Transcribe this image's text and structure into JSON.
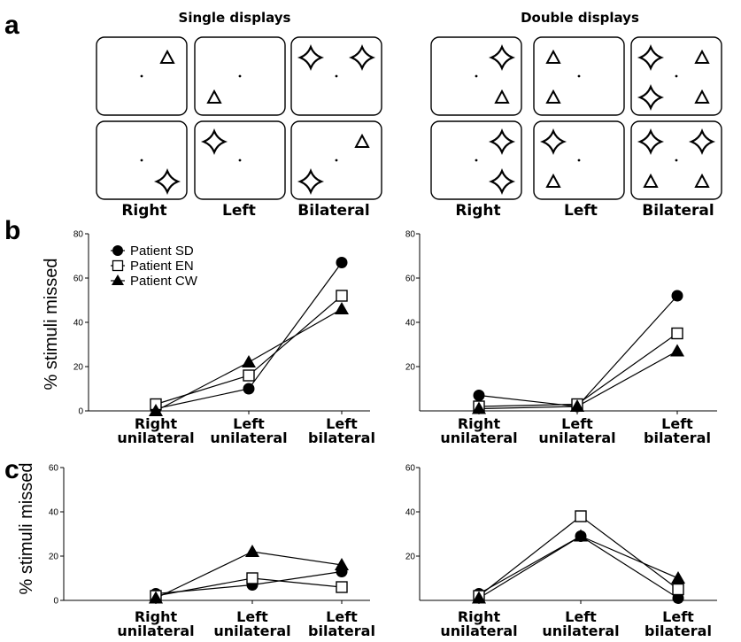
{
  "panel_labels": {
    "a": "a",
    "b": "b",
    "c": "c"
  },
  "displays": {
    "single_title": "Single displays",
    "double_title": "Double displays",
    "single_conditions": [
      "Right",
      "Left",
      "Bilateral"
    ],
    "double_conditions": [
      "Right",
      "Left",
      "Bilateral"
    ],
    "single_boxes": [
      [
        {
          "shape": "triangle",
          "pos": "upper-right"
        }
      ],
      [
        {
          "shape": "triangle",
          "pos": "lower-left"
        }
      ],
      [
        {
          "shape": "star",
          "pos": "upper-left"
        },
        {
          "shape": "star",
          "pos": "upper-right"
        }
      ],
      [
        {
          "shape": "star",
          "pos": "lower-right"
        }
      ],
      [
        {
          "shape": "star",
          "pos": "upper-left"
        }
      ],
      [
        {
          "shape": "star",
          "pos": "lower-left"
        },
        {
          "shape": "triangle",
          "pos": "upper-right"
        }
      ]
    ],
    "double_boxes": [
      [
        {
          "shape": "star",
          "pos": "upper-right"
        },
        {
          "shape": "triangle",
          "pos": "lower-right"
        }
      ],
      [
        {
          "shape": "triangle",
          "pos": "upper-left"
        },
        {
          "shape": "triangle",
          "pos": "lower-left"
        }
      ],
      [
        {
          "shape": "star",
          "pos": "upper-left"
        },
        {
          "shape": "star",
          "pos": "lower-left"
        },
        {
          "shape": "triangle",
          "pos": "upper-right"
        },
        {
          "shape": "triangle",
          "pos": "lower-right"
        }
      ],
      [
        {
          "shape": "star",
          "pos": "upper-right"
        },
        {
          "shape": "star",
          "pos": "lower-right"
        }
      ],
      [
        {
          "shape": "star",
          "pos": "upper-left"
        },
        {
          "shape": "triangle",
          "pos": "lower-left"
        }
      ],
      [
        {
          "shape": "star",
          "pos": "upper-left"
        },
        {
          "shape": "star",
          "pos": "upper-right"
        },
        {
          "shape": "triangle",
          "pos": "lower-left"
        },
        {
          "shape": "triangle",
          "pos": "lower-right"
        }
      ]
    ]
  },
  "legend": [
    {
      "name": "Patient SD",
      "marker": "filled-circle"
    },
    {
      "name": "Patient EN",
      "marker": "open-square"
    },
    {
      "name": "Patient CW",
      "marker": "filled-triangle"
    }
  ],
  "chart_data": [
    {
      "id": "b-left",
      "type": "line",
      "ylabel": "% stimuli missed",
      "ylim": [
        0,
        80
      ],
      "yticks": [
        0,
        20,
        40,
        60,
        80
      ],
      "categories": [
        [
          "Right",
          "unilateral"
        ],
        [
          "Left",
          "unilateral"
        ],
        [
          "Left",
          "bilateral"
        ]
      ],
      "series": [
        {
          "name": "Patient SD",
          "values": [
            1,
            10,
            67
          ]
        },
        {
          "name": "Patient EN",
          "values": [
            3,
            16,
            52
          ]
        },
        {
          "name": "Patient CW",
          "values": [
            0,
            22,
            46
          ]
        }
      ]
    },
    {
      "id": "b-right",
      "type": "line",
      "ylabel": "",
      "ylim": [
        0,
        80
      ],
      "yticks": [
        20,
        40,
        60,
        80
      ],
      "categories": [
        [
          "Right",
          "unilateral"
        ],
        [
          "Left",
          "unilateral"
        ],
        [
          "Left",
          "bilateral"
        ]
      ],
      "series": [
        {
          "name": "Patient SD",
          "values": [
            7,
            2,
            52
          ]
        },
        {
          "name": "Patient EN",
          "values": [
            2,
            3,
            35
          ]
        },
        {
          "name": "Patient CW",
          "values": [
            1,
            2,
            27
          ]
        }
      ]
    },
    {
      "id": "c-left",
      "type": "line",
      "ylabel": "% stimuli missed",
      "ylim": [
        0,
        60
      ],
      "yticks": [
        0,
        20,
        40,
        60
      ],
      "categories": [
        [
          "Right",
          "unilateral"
        ],
        [
          "Left",
          "unilateral"
        ],
        [
          "Left",
          "bilateral"
        ]
      ],
      "series": [
        {
          "name": "Patient SD",
          "values": [
            3,
            7,
            13
          ]
        },
        {
          "name": "Patient EN",
          "values": [
            2,
            10,
            6
          ]
        },
        {
          "name": "Patient CW",
          "values": [
            1,
            22,
            16
          ]
        }
      ]
    },
    {
      "id": "c-right",
      "type": "line",
      "ylabel": "",
      "ylim": [
        0,
        60
      ],
      "yticks": [
        20,
        40,
        60
      ],
      "categories": [
        [
          "Right",
          "unilateral"
        ],
        [
          "Left",
          "unilateral"
        ],
        [
          "Left",
          "bilateral"
        ]
      ],
      "series": [
        {
          "name": "Patient SD",
          "values": [
            3,
            29,
            1
          ]
        },
        {
          "name": "Patient EN",
          "values": [
            2,
            38,
            5
          ]
        },
        {
          "name": "Patient CW",
          "values": [
            1,
            29,
            10
          ]
        }
      ]
    }
  ]
}
